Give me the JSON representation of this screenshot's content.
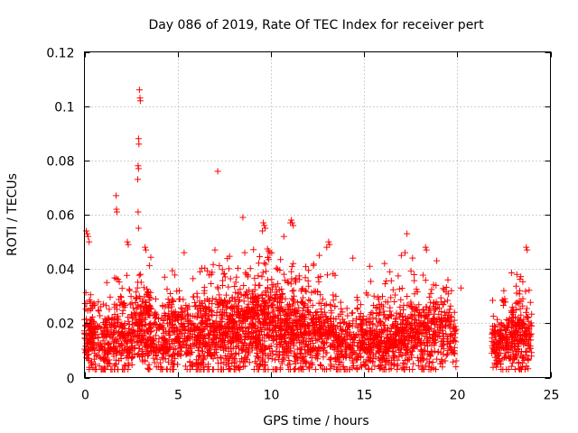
{
  "chart_data": {
    "type": "scatter",
    "title": "Day 086 of 2019, Rate Of TEC Index for receiver pert",
    "xlabel": "GPS time / hours",
    "ylabel": "ROTI / TECUs",
    "xlim": [
      0,
      25
    ],
    "ylim": [
      0,
      0.12
    ],
    "x_ticks": [
      0,
      5,
      10,
      15,
      20,
      25
    ],
    "x_tick_labels": [
      "0",
      "5",
      "10",
      "15",
      "20",
      "25"
    ],
    "y_ticks": [
      0,
      0.02,
      0.04,
      0.06,
      0.08,
      0.1,
      0.12
    ],
    "y_tick_labels": [
      "0",
      "0.02",
      "0.04",
      "0.06",
      "0.08",
      "0.1",
      "0.12"
    ],
    "grid": true,
    "marker": "plus",
    "point_color": "#ff0000",
    "data_gaps_hours": [
      [
        19.95,
        21.85
      ]
    ],
    "series": [
      {
        "name": "ROTI",
        "points": [
          [
            2.95,
            0.106
          ],
          [
            2.98,
            0.103
          ],
          [
            3.0,
            0.102
          ],
          [
            2.9,
            0.088
          ],
          [
            2.92,
            0.086
          ],
          [
            2.88,
            0.078
          ],
          [
            2.9,
            0.077
          ],
          [
            2.86,
            0.073
          ],
          [
            1.7,
            0.067
          ],
          [
            1.72,
            0.062
          ],
          [
            1.74,
            0.061
          ],
          [
            2.88,
            0.061
          ],
          [
            2.9,
            0.055
          ],
          [
            7.15,
            0.076
          ],
          [
            8.5,
            0.059
          ],
          [
            9.6,
            0.057
          ],
          [
            9.65,
            0.056
          ],
          [
            9.7,
            0.055
          ],
          [
            9.55,
            0.054
          ],
          [
            11.1,
            0.058
          ],
          [
            11.15,
            0.057
          ],
          [
            11.2,
            0.056
          ],
          [
            11.05,
            0.057
          ],
          [
            10.7,
            0.052
          ],
          [
            17.3,
            0.053
          ],
          [
            0.1,
            0.054
          ],
          [
            0.15,
            0.053
          ],
          [
            0.2,
            0.052
          ],
          [
            0.25,
            0.05
          ],
          [
            2.3,
            0.05
          ],
          [
            2.35,
            0.049
          ],
          [
            3.25,
            0.048
          ],
          [
            3.3,
            0.047
          ],
          [
            13.1,
            0.05
          ],
          [
            13.15,
            0.049
          ],
          [
            13.0,
            0.048
          ],
          [
            18.3,
            0.048
          ],
          [
            18.35,
            0.047
          ],
          [
            23.7,
            0.048
          ],
          [
            23.75,
            0.047
          ],
          [
            8.6,
            0.046
          ],
          [
            5.35,
            0.046
          ],
          [
            7.0,
            0.047
          ],
          [
            12.6,
            0.045
          ],
          [
            14.4,
            0.044
          ],
          [
            17.0,
            0.045
          ],
          [
            17.2,
            0.046
          ],
          [
            17.6,
            0.044
          ],
          [
            18.9,
            0.043
          ],
          [
            16.1,
            0.042
          ],
          [
            15.3,
            0.041
          ],
          [
            20.2,
            0.033
          ],
          [
            22.5,
            0.032
          ],
          [
            22.55,
            0.029
          ],
          [
            23.2,
            0.038
          ],
          [
            19.5,
            0.036
          ],
          [
            1.2,
            0.035
          ],
          [
            4.3,
            0.037
          ],
          [
            6.2,
            0.039
          ],
          [
            6.8,
            0.038
          ]
        ]
      }
    ],
    "density_segments": [
      {
        "from": 0.0,
        "to": 0.6,
        "n": 120,
        "center": 0.015,
        "spread": 0.006,
        "peak": 0.035
      },
      {
        "from": 0.6,
        "to": 1.6,
        "n": 130,
        "center": 0.013,
        "spread": 0.006,
        "peak": 0.032
      },
      {
        "from": 1.6,
        "to": 2.6,
        "n": 160,
        "center": 0.015,
        "spread": 0.007,
        "peak": 0.038
      },
      {
        "from": 2.6,
        "to": 3.6,
        "n": 190,
        "center": 0.018,
        "spread": 0.008,
        "peak": 0.045
      },
      {
        "from": 3.6,
        "to": 4.4,
        "n": 100,
        "center": 0.013,
        "spread": 0.005,
        "peak": 0.03
      },
      {
        "from": 4.4,
        "to": 6.0,
        "n": 240,
        "center": 0.016,
        "spread": 0.007,
        "peak": 0.04
      },
      {
        "from": 6.0,
        "to": 7.5,
        "n": 280,
        "center": 0.017,
        "spread": 0.008,
        "peak": 0.042
      },
      {
        "from": 7.5,
        "to": 9.0,
        "n": 300,
        "center": 0.018,
        "spread": 0.008,
        "peak": 0.045
      },
      {
        "from": 9.0,
        "to": 10.5,
        "n": 320,
        "center": 0.019,
        "spread": 0.009,
        "peak": 0.05
      },
      {
        "from": 10.5,
        "to": 12.0,
        "n": 300,
        "center": 0.018,
        "spread": 0.008,
        "peak": 0.045
      },
      {
        "from": 12.0,
        "to": 13.5,
        "n": 240,
        "center": 0.016,
        "spread": 0.007,
        "peak": 0.042
      },
      {
        "from": 13.5,
        "to": 14.6,
        "n": 140,
        "center": 0.012,
        "spread": 0.005,
        "peak": 0.028
      },
      {
        "from": 14.6,
        "to": 16.2,
        "n": 260,
        "center": 0.015,
        "spread": 0.007,
        "peak": 0.038
      },
      {
        "from": 16.2,
        "to": 17.8,
        "n": 270,
        "center": 0.016,
        "spread": 0.007,
        "peak": 0.04
      },
      {
        "from": 17.8,
        "to": 19.7,
        "n": 280,
        "center": 0.016,
        "spread": 0.007,
        "peak": 0.038
      },
      {
        "from": 19.75,
        "to": 19.95,
        "n": 24,
        "center": 0.013,
        "spread": 0.005,
        "peak": 0.024
      },
      {
        "from": 21.85,
        "to": 22.9,
        "n": 150,
        "center": 0.013,
        "spread": 0.005,
        "peak": 0.03
      },
      {
        "from": 22.9,
        "to": 24.0,
        "n": 200,
        "center": 0.015,
        "spread": 0.006,
        "peak": 0.04
      }
    ]
  }
}
